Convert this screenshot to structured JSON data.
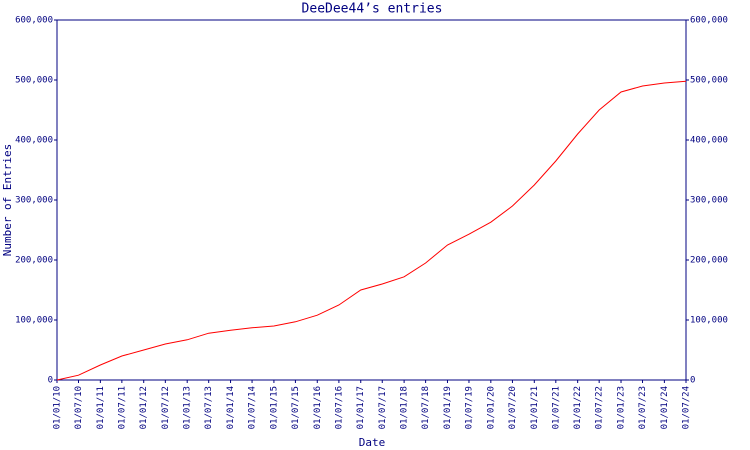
{
  "chart_data": {
    "type": "line",
    "title": "DeeDee44’s entries",
    "x_label": "Date",
    "y_label": "Number of Entries",
    "x": [
      "01/01/10",
      "01/07/10",
      "01/01/11",
      "01/07/11",
      "01/01/12",
      "01/07/12",
      "01/01/13",
      "01/07/13",
      "01/01/14",
      "01/07/14",
      "01/01/15",
      "01/07/15",
      "01/01/16",
      "01/07/16",
      "01/01/17",
      "01/07/17",
      "01/01/18",
      "01/07/18",
      "01/01/19",
      "01/07/19",
      "01/01/20",
      "01/07/20",
      "01/01/21",
      "01/07/21",
      "01/01/22",
      "01/07/22",
      "01/01/23",
      "01/07/23",
      "01/01/24",
      "01/07/24"
    ],
    "series": [
      {
        "name": "DeeDee44",
        "color": "#ff0000",
        "values": [
          0,
          8000,
          25000,
          40000,
          50000,
          60000,
          67000,
          78000,
          83000,
          87000,
          90000,
          97000,
          108000,
          125000,
          150000,
          160000,
          172000,
          195000,
          225000,
          243000,
          263000,
          290000,
          325000,
          365000,
          410000,
          450000,
          480000,
          490000,
          495000,
          498000
        ]
      }
    ],
    "xlim": [
      "01/01/10",
      "01/07/24"
    ],
    "xticks": [
      "01/01/10",
      "01/07/10",
      "01/01/11",
      "01/07/11",
      "01/01/12",
      "01/07/12",
      "01/01/13",
      "01/07/13",
      "01/01/14",
      "01/07/14",
      "01/01/15",
      "01/07/15",
      "01/01/16",
      "01/07/16",
      "01/01/17",
      "01/07/17",
      "01/01/18",
      "01/07/18",
      "01/01/19",
      "01/07/19",
      "01/01/20",
      "01/07/20",
      "01/01/21",
      "01/07/21",
      "01/01/22",
      "01/07/22",
      "01/01/23",
      "01/07/23",
      "01/01/24",
      "01/07/24"
    ],
    "ylim": [
      0,
      600000
    ],
    "yticks": [
      0,
      {
        "value": 100000,
        "label": "100,000"
      },
      {
        "value": 200000,
        "label": "200,000"
      },
      {
        "value": 300000,
        "label": "300,000"
      },
      {
        "value": 400000,
        "label": "400,000"
      },
      {
        "value": 500000,
        "label": "500,000"
      },
      {
        "value": 600000,
        "label": "600,000"
      }
    ],
    "right_axis": true
  }
}
